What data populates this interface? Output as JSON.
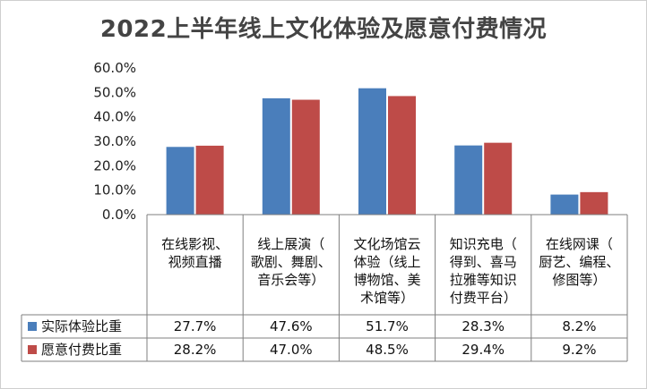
{
  "chart_data": {
    "type": "bar",
    "title": "2022上半年线上文化体验及愿意付费情况",
    "categories": [
      [
        "在线影视、",
        "视频直播"
      ],
      [
        "线上展演（",
        "歌剧、舞剧、",
        "音乐会等）"
      ],
      [
        "文化场馆云",
        "体验（线上",
        "博物馆、美",
        "术馆等）"
      ],
      [
        "知识充电（",
        "得到、喜马",
        "拉雅等知识",
        "付费平台）"
      ],
      [
        "在线网课（",
        "厨艺、编程、",
        "修图等）"
      ]
    ],
    "series": [
      {
        "name": "实际体验比重",
        "color": "#4a7ebb",
        "values": [
          27.7,
          47.6,
          51.7,
          28.3,
          8.2
        ],
        "labels": [
          "27.7%",
          "47.6%",
          "51.7%",
          "28.3%",
          "8.2%"
        ]
      },
      {
        "name": "愿意付费比重",
        "color": "#be4b48",
        "values": [
          28.2,
          47.0,
          48.5,
          29.4,
          9.2
        ],
        "labels": [
          "28.2%",
          "47.0%",
          "48.5%",
          "29.4%",
          "9.2%"
        ]
      }
    ],
    "y_ticks": [
      "0.0%",
      "10.0%",
      "20.0%",
      "30.0%",
      "40.0%",
      "50.0%",
      "60.0%"
    ],
    "ylim": [
      0,
      60
    ],
    "grid": false,
    "legend": "table-rows"
  }
}
